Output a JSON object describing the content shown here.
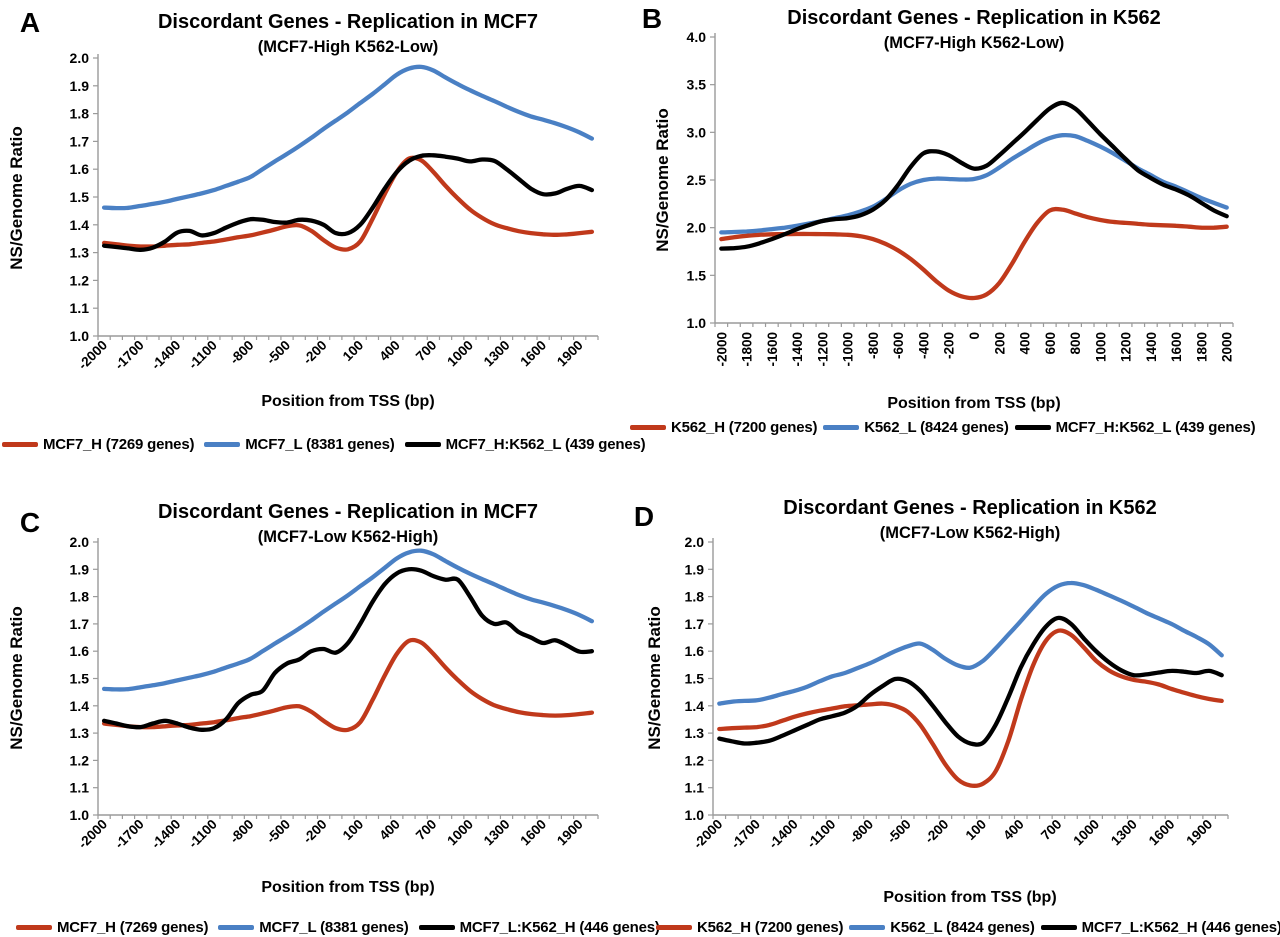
{
  "figure_background": "#ffffff",
  "axis_color": "#9a9a9a",
  "text_color": "#000000",
  "series_colors": {
    "red": "#c0391b",
    "blue": "#4a80c4",
    "black": "#000000"
  },
  "x_positions": [
    -2000,
    -1900,
    -1800,
    -1700,
    -1600,
    -1500,
    -1400,
    -1300,
    -1200,
    -1100,
    -1000,
    -900,
    -800,
    -700,
    -600,
    -500,
    -400,
    -300,
    -200,
    -100,
    0,
    100,
    200,
    300,
    400,
    500,
    600,
    700,
    800,
    900,
    1000,
    1100,
    1200,
    1300,
    1400,
    1500,
    1600,
    1700,
    1800,
    1900,
    2000
  ],
  "chart_data": [
    {
      "type": "line",
      "panel_label": "A",
      "title": "Discordant Genes - Replication in MCF7",
      "subtitle": "(MCF7-High K562-Low)",
      "xlabel": "Position from TSS (bp)",
      "ylabel": "NS/Genome Ratio",
      "ylim": [
        1.0,
        2.0
      ],
      "y_tick_labels": [
        "2.0",
        "1.9",
        "1.8",
        "1.7",
        "1.6",
        "1.5",
        "1.4",
        "1.3",
        "1.2",
        "1.1",
        "1.0"
      ],
      "x_tick_labels": [
        "-2000",
        "-1700",
        "-1400",
        "-1100",
        "-800",
        "-500",
        "-200",
        "100",
        "400",
        "700",
        "1000",
        "1300",
        "1600",
        "1900"
      ],
      "x_tick_indices": [
        0,
        3,
        6,
        9,
        12,
        15,
        18,
        21,
        24,
        27,
        30,
        33,
        36,
        39
      ],
      "x_tick_rotation": 45,
      "grid": false,
      "legend_position": "bottom",
      "series": [
        {
          "name": "MCF7_H (7269 genes)",
          "color": "#c0391b",
          "values": [
            1.335,
            1.33,
            1.325,
            1.322,
            1.322,
            1.325,
            1.328,
            1.33,
            1.335,
            1.34,
            1.347,
            1.355,
            1.362,
            1.372,
            1.383,
            1.395,
            1.398,
            1.378,
            1.345,
            1.318,
            1.312,
            1.34,
            1.42,
            1.51,
            1.59,
            1.638,
            1.632,
            1.59,
            1.54,
            1.495,
            1.455,
            1.425,
            1.402,
            1.388,
            1.377,
            1.37,
            1.366,
            1.364,
            1.366,
            1.37,
            1.375
          ]
        },
        {
          "name": "MCF7_L (8381 genes)",
          "color": "#4a80c4",
          "values": [
            1.462,
            1.46,
            1.461,
            1.468,
            1.475,
            1.483,
            1.493,
            1.503,
            1.513,
            1.525,
            1.54,
            1.555,
            1.572,
            1.6,
            1.628,
            1.655,
            1.683,
            1.713,
            1.745,
            1.775,
            1.805,
            1.838,
            1.87,
            1.905,
            1.94,
            1.962,
            1.968,
            1.955,
            1.93,
            1.906,
            1.884,
            1.864,
            1.845,
            1.825,
            1.806,
            1.79,
            1.778,
            1.765,
            1.75,
            1.732,
            1.71
          ]
        },
        {
          "name": "MCF7_H:K562_L (439 genes)",
          "color": "#000000",
          "values": [
            1.325,
            1.32,
            1.315,
            1.31,
            1.318,
            1.34,
            1.372,
            1.378,
            1.362,
            1.37,
            1.39,
            1.408,
            1.42,
            1.418,
            1.41,
            1.408,
            1.418,
            1.415,
            1.4,
            1.37,
            1.37,
            1.4,
            1.46,
            1.53,
            1.59,
            1.63,
            1.648,
            1.65,
            1.645,
            1.638,
            1.628,
            1.635,
            1.63,
            1.6,
            1.565,
            1.53,
            1.51,
            1.513,
            1.53,
            1.54,
            1.525
          ]
        }
      ]
    },
    {
      "type": "line",
      "panel_label": "B",
      "title": "Discordant Genes - Replication in K562",
      "subtitle": "(MCF7-High K562-Low)",
      "xlabel": "Position from TSS (bp)",
      "ylabel": "NS/Genome Ratio",
      "ylim": [
        1.0,
        4.0
      ],
      "y_tick_labels": [
        "4.0",
        "3.5",
        "3.0",
        "2.5",
        "2.0",
        "1.5",
        "1.0"
      ],
      "x_tick_labels": [
        "-2000",
        "-1800",
        "-1600",
        "-1400",
        "-1200",
        "-1000",
        "-800",
        "-600",
        "-400",
        "-200",
        "0",
        "200",
        "400",
        "600",
        "800",
        "1000",
        "1200",
        "1400",
        "1600",
        "1800",
        "2000"
      ],
      "x_tick_indices": [
        0,
        2,
        4,
        6,
        8,
        10,
        12,
        14,
        16,
        18,
        20,
        22,
        24,
        26,
        28,
        30,
        32,
        34,
        36,
        38,
        40
      ],
      "x_tick_rotation": 90,
      "grid": false,
      "legend_position": "bottom",
      "series": [
        {
          "name": "K562_H (7200 genes)",
          "color": "#c0391b",
          "values": [
            1.88,
            1.9,
            1.915,
            1.925,
            1.93,
            1.932,
            1.934,
            1.934,
            1.932,
            1.93,
            1.925,
            1.91,
            1.88,
            1.83,
            1.76,
            1.67,
            1.56,
            1.44,
            1.34,
            1.28,
            1.262,
            1.3,
            1.42,
            1.62,
            1.85,
            2.05,
            2.18,
            2.19,
            2.15,
            2.11,
            2.08,
            2.06,
            2.05,
            2.04,
            2.03,
            2.025,
            2.02,
            2.01,
            2.0,
            2.0,
            2.01
          ]
        },
        {
          "name": "K562_L (8424 genes)",
          "color": "#4a80c4",
          "values": [
            1.95,
            1.955,
            1.96,
            1.97,
            1.985,
            2.0,
            2.02,
            2.045,
            2.07,
            2.1,
            2.13,
            2.17,
            2.22,
            2.3,
            2.39,
            2.46,
            2.5,
            2.515,
            2.51,
            2.505,
            2.51,
            2.55,
            2.63,
            2.72,
            2.8,
            2.88,
            2.94,
            2.97,
            2.96,
            2.91,
            2.85,
            2.78,
            2.7,
            2.62,
            2.55,
            2.48,
            2.43,
            2.37,
            2.31,
            2.26,
            2.21
          ]
        },
        {
          "name": "MCF7_H:K562_L (439 genes)",
          "color": "#000000",
          "values": [
            1.78,
            1.785,
            1.8,
            1.835,
            1.88,
            1.93,
            1.985,
            2.03,
            2.07,
            2.09,
            2.1,
            2.13,
            2.19,
            2.29,
            2.45,
            2.64,
            2.78,
            2.8,
            2.76,
            2.68,
            2.62,
            2.65,
            2.76,
            2.88,
            3.0,
            3.13,
            3.25,
            3.31,
            3.25,
            3.12,
            2.98,
            2.85,
            2.72,
            2.6,
            2.52,
            2.45,
            2.4,
            2.34,
            2.26,
            2.18,
            2.12
          ]
        }
      ]
    },
    {
      "type": "line",
      "panel_label": "C",
      "title": "Discordant Genes - Replication in MCF7",
      "subtitle": "(MCF7-Low K562-High)",
      "xlabel": "Position from TSS (bp)",
      "ylabel": "NS/Genome Ratio",
      "ylim": [
        1.0,
        2.0
      ],
      "y_tick_labels": [
        "2.0",
        "1.9",
        "1.8",
        "1.7",
        "1.6",
        "1.5",
        "1.4",
        "1.3",
        "1.2",
        "1.1",
        "1.0"
      ],
      "x_tick_labels": [
        "-2000",
        "-1700",
        "-1400",
        "-1100",
        "-800",
        "-500",
        "-200",
        "100",
        "400",
        "700",
        "1000",
        "1300",
        "1600",
        "1900"
      ],
      "x_tick_indices": [
        0,
        3,
        6,
        9,
        12,
        15,
        18,
        21,
        24,
        27,
        30,
        33,
        36,
        39
      ],
      "x_tick_rotation": 45,
      "grid": false,
      "legend_position": "bottom",
      "series": [
        {
          "name": "MCF7_H (7269 genes)",
          "color": "#c0391b",
          "values": [
            1.335,
            1.33,
            1.325,
            1.322,
            1.322,
            1.325,
            1.328,
            1.33,
            1.335,
            1.34,
            1.347,
            1.355,
            1.362,
            1.372,
            1.383,
            1.395,
            1.398,
            1.378,
            1.345,
            1.318,
            1.312,
            1.34,
            1.42,
            1.51,
            1.59,
            1.638,
            1.632,
            1.59,
            1.54,
            1.495,
            1.455,
            1.425,
            1.402,
            1.388,
            1.377,
            1.37,
            1.366,
            1.364,
            1.366,
            1.37,
            1.375
          ]
        },
        {
          "name": "MCF7_L (8381 genes)",
          "color": "#4a80c4",
          "values": [
            1.462,
            1.46,
            1.461,
            1.468,
            1.475,
            1.483,
            1.493,
            1.503,
            1.513,
            1.525,
            1.54,
            1.555,
            1.572,
            1.6,
            1.628,
            1.655,
            1.683,
            1.713,
            1.745,
            1.775,
            1.805,
            1.838,
            1.87,
            1.905,
            1.94,
            1.962,
            1.968,
            1.955,
            1.93,
            1.906,
            1.884,
            1.864,
            1.845,
            1.825,
            1.806,
            1.79,
            1.778,
            1.765,
            1.75,
            1.732,
            1.71
          ]
        },
        {
          "name": "MCF7_L:K562_H (446 genes)",
          "color": "#000000",
          "values": [
            1.345,
            1.335,
            1.325,
            1.322,
            1.335,
            1.345,
            1.335,
            1.32,
            1.312,
            1.318,
            1.35,
            1.41,
            1.44,
            1.455,
            1.52,
            1.555,
            1.57,
            1.6,
            1.608,
            1.595,
            1.63,
            1.7,
            1.78,
            1.845,
            1.885,
            1.9,
            1.895,
            1.875,
            1.862,
            1.862,
            1.8,
            1.73,
            1.7,
            1.705,
            1.67,
            1.65,
            1.63,
            1.64,
            1.62,
            1.598,
            1.6
          ]
        }
      ]
    },
    {
      "type": "line",
      "panel_label": "D",
      "title": "Discordant Genes - Replication in K562",
      "subtitle": "(MCF7-Low K562-High)",
      "xlabel": "Position from TSS (bp)",
      "ylabel": "NS/Genome Ratio",
      "ylim": [
        1.0,
        2.0
      ],
      "y_tick_labels": [
        "2.0",
        "1.9",
        "1.8",
        "1.7",
        "1.6",
        "1.5",
        "1.4",
        "1.3",
        "1.2",
        "1.1",
        "1.0"
      ],
      "x_tick_labels": [
        "-2000",
        "-1700",
        "-1400",
        "-1100",
        "-800",
        "-500",
        "-200",
        "100",
        "400",
        "700",
        "1000",
        "1300",
        "1600",
        "1900"
      ],
      "x_tick_indices": [
        0,
        3,
        6,
        9,
        12,
        15,
        18,
        21,
        24,
        27,
        30,
        33,
        36,
        39
      ],
      "x_tick_rotation": 45,
      "grid": false,
      "legend_position": "bottom",
      "series": [
        {
          "name": "K562_H (7200 genes)",
          "color": "#c0391b",
          "values": [
            1.315,
            1.318,
            1.32,
            1.322,
            1.33,
            1.345,
            1.36,
            1.372,
            1.382,
            1.39,
            1.398,
            1.402,
            1.405,
            1.408,
            1.4,
            1.378,
            1.33,
            1.26,
            1.185,
            1.13,
            1.108,
            1.115,
            1.16,
            1.27,
            1.42,
            1.55,
            1.638,
            1.675,
            1.66,
            1.615,
            1.565,
            1.53,
            1.508,
            1.495,
            1.488,
            1.478,
            1.462,
            1.448,
            1.435,
            1.425,
            1.418
          ]
        },
        {
          "name": "K562_L (8424 genes)",
          "color": "#4a80c4",
          "values": [
            1.408,
            1.415,
            1.418,
            1.42,
            1.43,
            1.443,
            1.455,
            1.47,
            1.49,
            1.508,
            1.52,
            1.538,
            1.556,
            1.578,
            1.6,
            1.618,
            1.628,
            1.605,
            1.572,
            1.548,
            1.54,
            1.565,
            1.61,
            1.66,
            1.71,
            1.762,
            1.81,
            1.84,
            1.85,
            1.842,
            1.825,
            1.805,
            1.785,
            1.763,
            1.74,
            1.72,
            1.7,
            1.675,
            1.652,
            1.625,
            1.585
          ]
        },
        {
          "name": "MCF7_L:K562_H (446 genes)",
          "color": "#000000",
          "values": [
            1.28,
            1.27,
            1.262,
            1.265,
            1.272,
            1.29,
            1.31,
            1.33,
            1.35,
            1.362,
            1.375,
            1.4,
            1.44,
            1.472,
            1.498,
            1.49,
            1.455,
            1.4,
            1.34,
            1.288,
            1.262,
            1.265,
            1.33,
            1.43,
            1.54,
            1.625,
            1.69,
            1.722,
            1.7,
            1.648,
            1.6,
            1.56,
            1.53,
            1.512,
            1.515,
            1.522,
            1.528,
            1.525,
            1.52,
            1.528,
            1.512
          ]
        }
      ]
    }
  ]
}
